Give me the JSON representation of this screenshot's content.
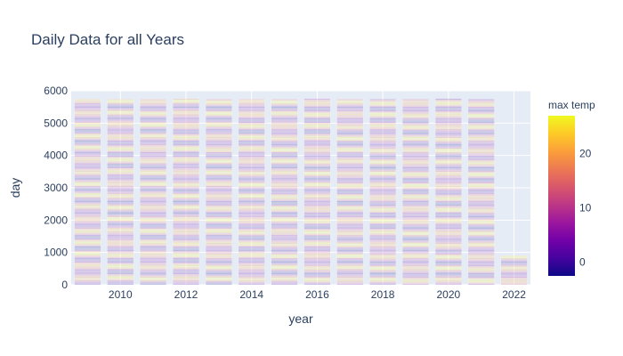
{
  "chart_data": {
    "type": "bar",
    "title": "Daily Data for all Years",
    "xlabel": "year",
    "ylabel": "day",
    "xlim": [
      2008.5,
      2022.5
    ],
    "ylim": [
      0,
      6000
    ],
    "x_ticks": [
      2010,
      2012,
      2014,
      2016,
      2018,
      2020,
      2022
    ],
    "y_ticks": [
      0,
      1000,
      2000,
      3000,
      4000,
      5000,
      6000
    ],
    "years": [
      2009,
      2010,
      2011,
      2012,
      2013,
      2014,
      2015,
      2016,
      2017,
      2018,
      2019,
      2020,
      2021,
      2022
    ],
    "stack_totals": [
      5745,
      5745,
      5745,
      5760,
      5745,
      5745,
      5745,
      5760,
      5745,
      5745,
      5745,
      5760,
      5745,
      900
    ],
    "color_title": "max temp",
    "color_range": [
      -2.5,
      27
    ],
    "color_ticks": [
      0,
      10,
      20
    ],
    "colorscale": [
      "#0d0887",
      "#46039f",
      "#7201a8",
      "#9c179e",
      "#bd3786",
      "#d8576b",
      "#ed7953",
      "#fb9f3a",
      "#fdca26",
      "#f0f921"
    ],
    "grid": true,
    "legend": "colorbar-right"
  }
}
